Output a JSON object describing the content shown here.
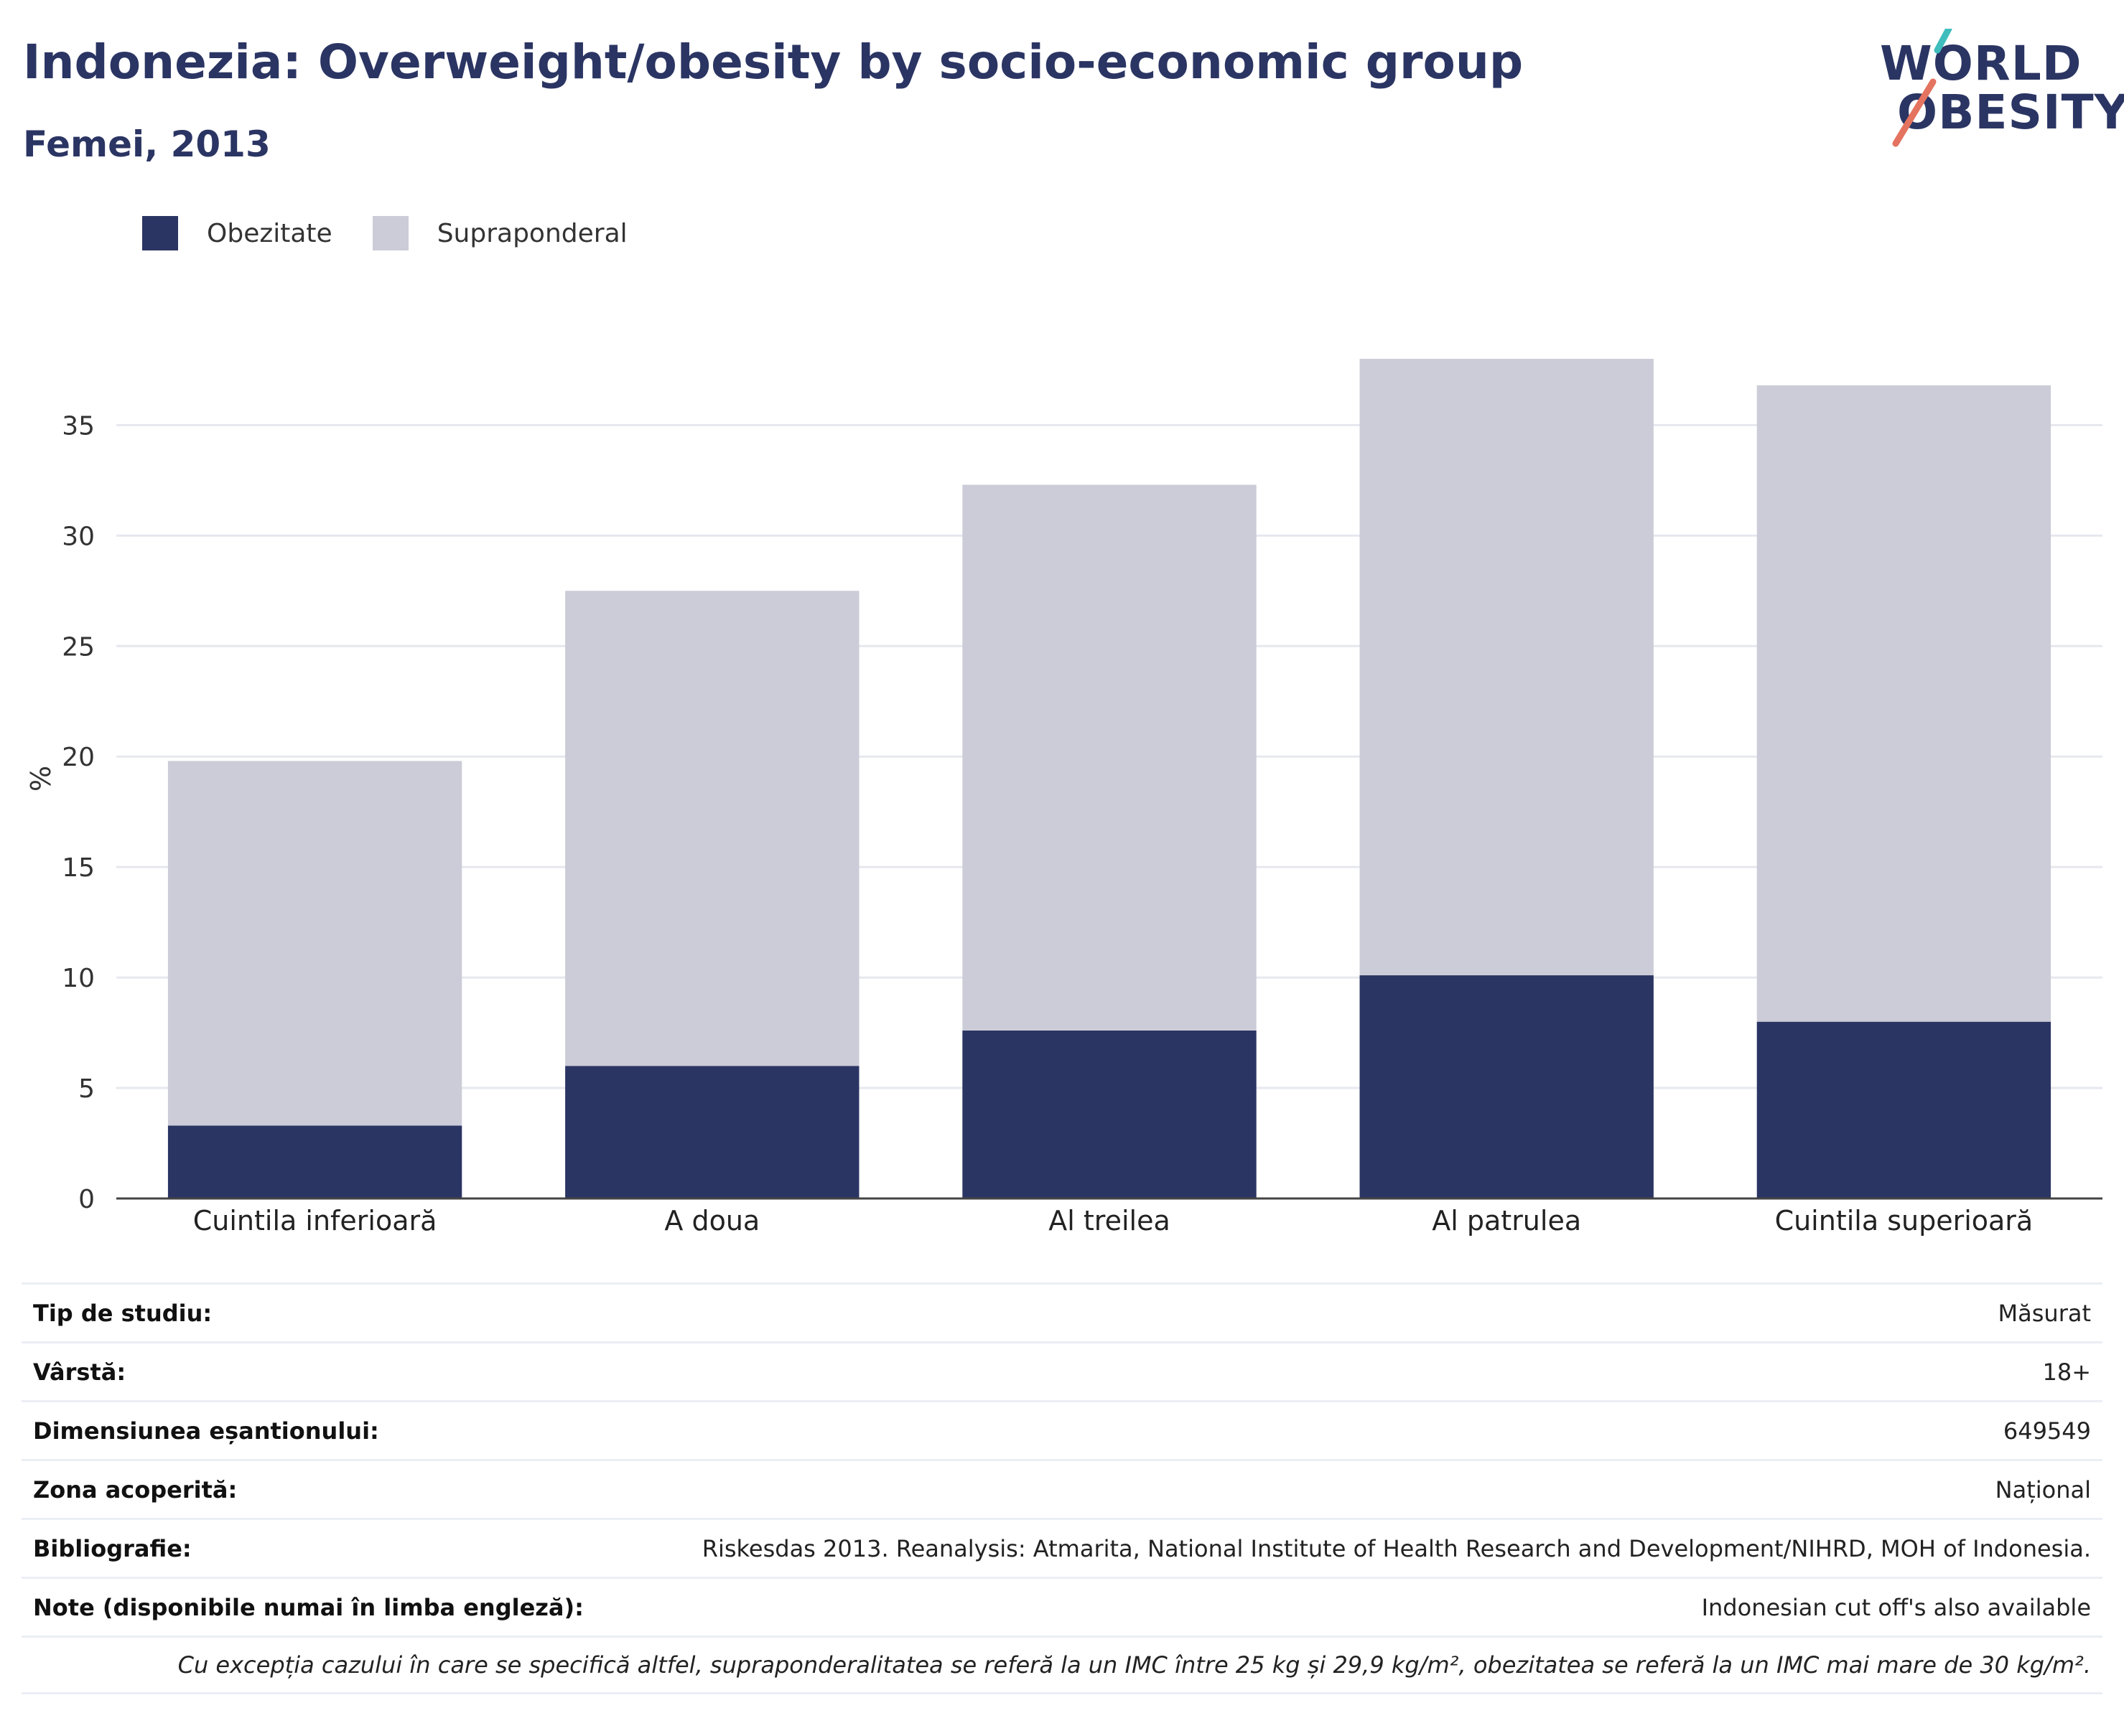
{
  "header": {
    "title": "Indonezia: Overweight/obesity by socio-economic group",
    "subtitle": "Femei, 2013"
  },
  "logo": {
    "line1": "WORLD",
    "line2": "OBESITY",
    "colors": {
      "text": "#2b3563",
      "slash_teal": "#3fbdbd",
      "slash_coral": "#e4735f"
    }
  },
  "legend": [
    {
      "label": "Obezitate",
      "color": "#2b3563"
    },
    {
      "label": "Supraponderal",
      "color": "#cbccd8"
    }
  ],
  "chart_data": {
    "type": "bar",
    "stacked": true,
    "categories": [
      "Cuintila inferioară",
      "A doua",
      "Al treilea",
      "Al patrulea",
      "Cuintila superioară"
    ],
    "series": [
      {
        "name": "Obezitate",
        "values": [
          3.3,
          6.0,
          7.6,
          10.1,
          8.0
        ],
        "color": "#2b3563"
      },
      {
        "name": "Supraponderal",
        "values": [
          16.5,
          21.5,
          24.7,
          28.0,
          28.8
        ],
        "color": "#cbccd8"
      }
    ],
    "ylabel": "%",
    "ylim": [
      0,
      38
    ],
    "yticks": [
      0,
      5,
      10,
      15,
      20,
      25,
      30,
      35
    ],
    "grid": true
  },
  "meta": [
    {
      "label": "Tip de studiu:",
      "value": "Măsurat"
    },
    {
      "label": "Vârstă:",
      "value": "18+"
    },
    {
      "label": "Dimensiunea eșantionului:",
      "value": "649549"
    },
    {
      "label": "Zona acoperită:",
      "value": "Național"
    },
    {
      "label": "Bibliografie:",
      "value": "Riskesdas 2013. Reanalysis: Atmarita, National Institute of Health Research and Development/NIHRD, MOH of Indonesia."
    },
    {
      "label": "Note (disponibile numai în limba engleză):",
      "value": "Indonesian cut off's also available"
    }
  ],
  "footnote": "Cu excepția cazului în care se specifică altfel, supraponderalitatea se referă la un IMC între 25 kg și 29,9 kg/m², obezitatea se referă la un IMC mai mare de 30 kg/m²."
}
